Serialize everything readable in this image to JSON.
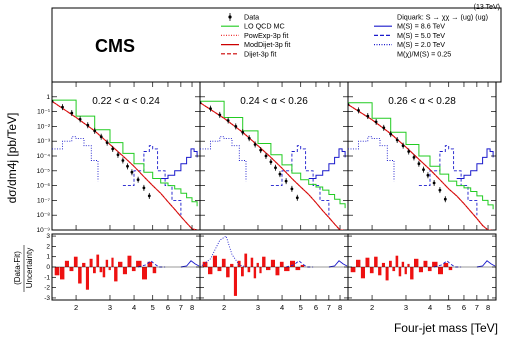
{
  "chart_data": {
    "type": "line",
    "header_note": "(13 TeV)",
    "experiment_label": "CMS",
    "ylabel_main": "dσ/dm4j [pb/TeV]",
    "ylabel_ratio_top": "(Data-Fit)",
    "ylabel_ratio_bottom": "Uncertainty",
    "xlabel": "Four-jet mass [TeV]",
    "x_scale": "log",
    "y_scale_main": "log",
    "xlim": [
      1.5,
      8.8
    ],
    "ylim_main": [
      1e-09,
      10
    ],
    "ylim_ratio": [
      -3.2,
      3.2
    ],
    "x_ticks": [
      2,
      3,
      4,
      5,
      6,
      7,
      8
    ],
    "y_ticks_main": [
      "1",
      "10⁻¹",
      "10⁻²",
      "10⁻³",
      "10⁻⁴",
      "10⁻⁵",
      "10⁻⁶",
      "10⁻⁷",
      "10⁻⁸",
      "10⁻⁹"
    ],
    "y_ticks_ratio": [
      "3",
      "2",
      "1",
      "0",
      "-1",
      "-2",
      "-3"
    ],
    "legend_left": [
      {
        "label": "Data",
        "style": "marker",
        "color": "#000000"
      },
      {
        "label": "LO QCD MC",
        "style": "solid",
        "color": "#22cc22"
      },
      {
        "label": "PowExp-3p fit",
        "style": "dotted",
        "color": "#ee3333"
      },
      {
        "label": "ModDijet-3p fit",
        "style": "solid",
        "color": "#cc0000"
      },
      {
        "label": "Dijet-3p fit",
        "style": "dashed",
        "color": "#cc0000"
      }
    ],
    "legend_right_title": "Diquark: S → χχ → (ug) (ug)",
    "legend_right": [
      {
        "label": "M(S) = 8.6 TeV",
        "style": "solid",
        "color": "#1a1acc"
      },
      {
        "label": "M(S) = 5.0 TeV",
        "style": "dashed",
        "color": "#1a1acc"
      },
      {
        "label": "M(S) = 2.0 TeV",
        "style": "dotted",
        "color": "#1a1acc"
      }
    ],
    "legend_right_note": "M(χ)/M(S) = 0.25",
    "panels": [
      {
        "label": "0.22 < α < 0.24",
        "data": {
          "x": [
            1.5,
            1.7,
            1.9,
            2.1,
            2.3,
            2.5,
            2.7,
            2.9,
            3.1,
            3.3,
            3.5,
            3.7,
            3.9,
            4.2,
            4.5,
            4.8
          ],
          "y": [
            0.5,
            0.2,
            0.08,
            0.03,
            0.012,
            0.005,
            0.002,
            0.0008,
            0.0003,
            0.00012,
            5e-05,
            2e-05,
            8e-06,
            2.5e-06,
            7e-07,
            2e-07
          ]
        },
        "fit": {
          "x": [
            1.5,
            2.0,
            2.5,
            3.0,
            3.5,
            4.0,
            4.5,
            5.0,
            5.5,
            6.0,
            6.5,
            7.0,
            7.5,
            8.0,
            8.5
          ],
          "y": [
            0.5,
            0.04,
            0.005,
            0.0006,
            0.0001,
            2e-05,
            4e-06,
            1e-06,
            3e-07,
            8e-08,
            2.5e-08,
            8e-09,
            3e-09,
            1.2e-09,
            5e-10
          ]
        },
        "qcd_mc": {
          "x": [
            1.5,
            2.0,
            2.5,
            3.0,
            3.5,
            4.0,
            4.5,
            5.0,
            5.5,
            6.0,
            6.5,
            7.0,
            7.5,
            8.0,
            8.5
          ],
          "y": [
            0.6,
            0.05,
            0.006,
            0.0008,
            0.00015,
            3e-05,
            8e-06,
            3e-06,
            1.5e-06,
            1e-06,
            6e-07,
            3e-07,
            1.5e-07,
            8e-08,
            4e-08
          ]
        },
        "signal_86": {
          "x": [
            5.5,
            6.0,
            6.5,
            7.0,
            7.5,
            7.9,
            8.2,
            8.5
          ],
          "y": [
            3e-06,
            5e-06,
            1e-05,
            3e-05,
            8e-05,
            0.0003,
            0.0002,
            8e-05
          ]
        },
        "signal_50": {
          "x": [
            3.5,
            4.0,
            4.5,
            4.8,
            5.0,
            5.3,
            5.8,
            6.3,
            7.0
          ],
          "y": [
            1e-06,
            1e-05,
            0.0002,
            0.0005,
            0.0003,
            1e-05,
            1e-06,
            1e-07,
            1e-08
          ]
        },
        "signal_20": {
          "x": [
            1.5,
            1.7,
            1.9,
            2.0,
            2.2,
            2.4,
            2.6
          ],
          "y": [
            0.0003,
            0.001,
            0.002,
            0.0015,
            0.0005,
            5e-05,
            2e-06
          ]
        },
        "residuals": {
          "x": [
            1.55,
            1.65,
            1.75,
            1.85,
            1.95,
            2.05,
            2.15,
            2.25,
            2.35,
            2.45,
            2.55,
            2.65,
            2.75,
            2.85,
            2.95,
            3.05,
            3.15,
            3.3,
            3.5,
            3.7,
            3.9,
            4.1,
            4.4,
            4.7,
            5.0
          ],
          "y": [
            -0.8,
            -1.2,
            0.6,
            -0.4,
            1.0,
            -1.6,
            0.4,
            -2.2,
            0.8,
            -0.6,
            1.2,
            -0.5,
            -1.0,
            0.7,
            -0.3,
            0.9,
            -1.4,
            0.5,
            -0.7,
            1.1,
            -0.4,
            0.6,
            -1.2,
            0.5,
            -0.6
          ]
        }
      },
      {
        "label": "0.24 < α < 0.26",
        "data": {
          "x": [
            1.5,
            1.7,
            1.9,
            2.1,
            2.3,
            2.5,
            2.7,
            2.9,
            3.1,
            3.3,
            3.5,
            3.7,
            3.9,
            4.2,
            4.5,
            4.8
          ],
          "y": [
            0.4,
            0.16,
            0.06,
            0.025,
            0.01,
            0.004,
            0.0016,
            0.0006,
            0.00025,
            0.0001,
            4e-05,
            1.6e-05,
            6e-06,
            2e-06,
            6e-07,
            1.5e-07
          ]
        },
        "fit": {
          "x": [
            1.5,
            2.0,
            2.5,
            3.0,
            3.5,
            4.0,
            4.5,
            5.0,
            5.5,
            6.0,
            6.5,
            7.0,
            7.5,
            8.0,
            8.5
          ],
          "y": [
            0.4,
            0.035,
            0.004,
            0.0005,
            8e-05,
            1.5e-05,
            3e-06,
            8e-07,
            2.5e-07,
            7e-08,
            2e-08,
            7e-09,
            2.5e-09,
            1e-09,
            4e-10
          ]
        },
        "qcd_mc": {
          "x": [
            1.5,
            2.0,
            2.5,
            3.0,
            3.5,
            4.0,
            4.5,
            5.0,
            5.5,
            6.0,
            6.5,
            7.0,
            7.5,
            8.0,
            8.5
          ],
          "y": [
            0.5,
            0.04,
            0.005,
            0.0007,
            0.00012,
            2.5e-05,
            7e-06,
            2.5e-06,
            1.2e-06,
            8e-07,
            5e-07,
            2.5e-07,
            1.2e-07,
            6e-08,
            3e-08
          ]
        },
        "signal_86": {
          "x": [
            5.5,
            6.0,
            6.5,
            7.0,
            7.5,
            7.9,
            8.2,
            8.5
          ],
          "y": [
            3e-06,
            5e-06,
            1e-05,
            3e-05,
            8e-05,
            0.0003,
            0.0002,
            8e-05
          ]
        },
        "signal_50": {
          "x": [
            3.5,
            4.0,
            4.5,
            4.8,
            5.0,
            5.3,
            5.8,
            6.3,
            7.0
          ],
          "y": [
            1e-06,
            1e-05,
            0.0002,
            0.0005,
            0.0003,
            1e-05,
            1e-06,
            1e-07,
            1e-08
          ]
        },
        "signal_20": {
          "x": [
            1.5,
            1.7,
            1.9,
            2.0,
            2.2,
            2.4,
            2.6
          ],
          "y": [
            0.0003,
            0.001,
            0.002,
            0.0015,
            0.0005,
            5e-05,
            2e-06
          ]
        },
        "residuals": {
          "x": [
            1.55,
            1.65,
            1.75,
            1.85,
            1.95,
            2.05,
            2.15,
            2.25,
            2.35,
            2.45,
            2.55,
            2.65,
            2.75,
            2.85,
            2.95,
            3.05,
            3.15,
            3.3,
            3.5,
            3.7,
            3.9,
            4.1,
            4.4,
            4.7,
            5.0
          ],
          "y": [
            0.5,
            -0.7,
            1.1,
            -0.4,
            0.8,
            -1.0,
            0.3,
            -2.8,
            0.6,
            -0.9,
            1.3,
            -0.5,
            0.9,
            -1.1,
            0.4,
            -0.6,
            1.0,
            -0.3,
            0.7,
            -0.8,
            0.5,
            -0.4,
            0.6,
            -0.3,
            0.2
          ]
        }
      },
      {
        "label": "0.26 < α < 0.28",
        "data": {
          "x": [
            1.5,
            1.7,
            1.9,
            2.1,
            2.3,
            2.5,
            2.7,
            2.9,
            3.1,
            3.3,
            3.5,
            3.7,
            3.9,
            4.2,
            4.5,
            4.8
          ],
          "y": [
            0.3,
            0.12,
            0.05,
            0.02,
            0.008,
            0.003,
            0.0012,
            0.0005,
            0.0002,
            8e-05,
            3e-05,
            1.2e-05,
            5e-06,
            1.5e-06,
            5e-07,
            1.2e-07
          ]
        },
        "fit": {
          "x": [
            1.5,
            2.0,
            2.5,
            3.0,
            3.5,
            4.0,
            4.5,
            5.0,
            5.5,
            6.0,
            6.5,
            7.0,
            7.5,
            8.0,
            8.5
          ],
          "y": [
            0.3,
            0.028,
            0.0032,
            0.0004,
            6e-05,
            1.2e-05,
            2.5e-06,
            6e-07,
            2e-07,
            6e-08,
            1.8e-08,
            6e-09,
            2e-09,
            8e-10,
            3e-10
          ]
        },
        "qcd_mc": {
          "x": [
            1.5,
            2.0,
            2.5,
            3.0,
            3.5,
            4.0,
            4.5,
            5.0,
            5.5,
            6.0,
            6.5,
            7.0,
            7.5,
            8.0,
            8.5
          ],
          "y": [
            0.4,
            0.035,
            0.004,
            0.0006,
            0.0001,
            2e-05,
            6e-06,
            2e-06,
            1e-06,
            7e-07,
            4e-07,
            2e-07,
            1e-07,
            5e-08,
            2.5e-08
          ]
        },
        "signal_86": {
          "x": [
            5.5,
            6.0,
            6.5,
            7.0,
            7.5,
            7.9,
            8.2,
            8.5
          ],
          "y": [
            3e-06,
            5e-06,
            1e-05,
            3e-05,
            8e-05,
            0.0003,
            0.0002,
            8e-05
          ]
        },
        "signal_50": {
          "x": [
            3.5,
            4.0,
            4.5,
            4.8,
            5.0,
            5.3,
            5.8,
            6.3,
            7.0
          ],
          "y": [
            1e-06,
            1e-05,
            0.0002,
            0.0005,
            0.0003,
            1e-05,
            1e-06,
            1e-07,
            1e-08
          ]
        },
        "signal_20": {
          "x": [
            1.5,
            1.7,
            1.9,
            2.0,
            2.2,
            2.4,
            2.6
          ],
          "y": [
            0.0003,
            0.001,
            0.002,
            0.0015,
            0.0005,
            5e-05,
            2e-06
          ]
        },
        "residuals": {
          "x": [
            1.55,
            1.65,
            1.75,
            1.85,
            1.95,
            2.05,
            2.15,
            2.25,
            2.35,
            2.45,
            2.55,
            2.65,
            2.75,
            2.85,
            2.95,
            3.05,
            3.15,
            3.3,
            3.5,
            3.7,
            3.9,
            4.1,
            4.4,
            4.7,
            5.0
          ],
          "y": [
            -0.5,
            0.7,
            -1.1,
            0.9,
            -0.6,
            1.0,
            -0.8,
            0.4,
            -1.3,
            0.6,
            -0.4,
            1.1,
            -0.9,
            0.5,
            -0.7,
            0.3,
            -1.2,
            0.8,
            -0.5,
            0.6,
            -0.4,
            0.5,
            -0.7,
            0.4,
            -0.3
          ]
        }
      }
    ]
  }
}
